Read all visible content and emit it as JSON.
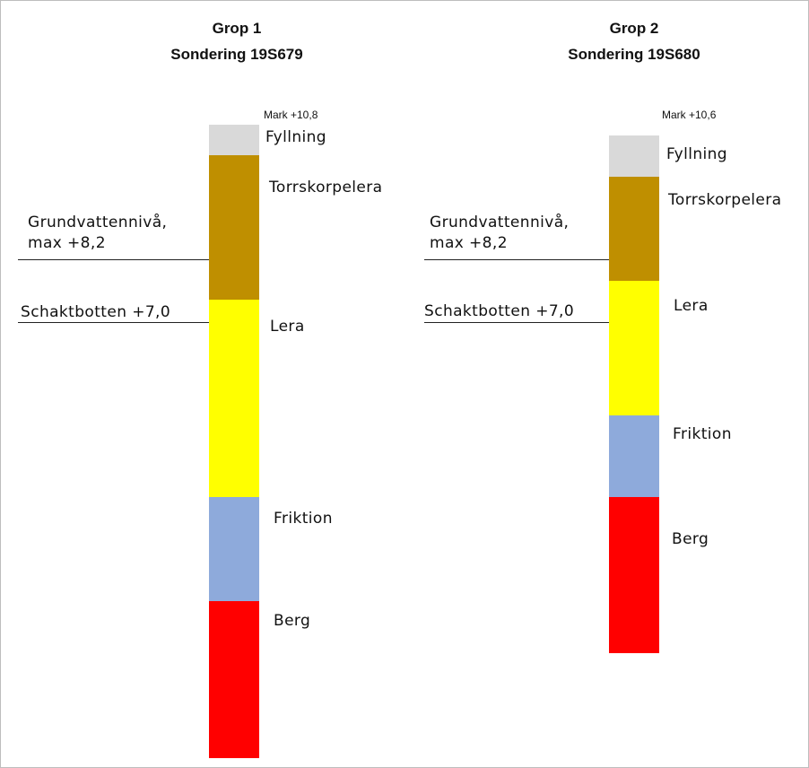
{
  "colors": {
    "fyllning": "#d9d9d9",
    "torrskorpelera": "#bf8f00",
    "lera": "#ffff00",
    "friktion": "#8eaadb",
    "berg": "#ff0000"
  },
  "columns": [
    {
      "title_line1": "Grop 1",
      "title_line2": "Sondering 19S679",
      "mark": "Mark +10,8",
      "layers": [
        "Fyllning",
        "Torrskorpelera",
        "Lera",
        "Friktion",
        "Berg"
      ],
      "groundwater_line1": "Grundvattennivå,",
      "groundwater_line2": "max +8,2",
      "excavation": "Schaktbotten +7,0"
    },
    {
      "title_line1": "Grop 2",
      "title_line2": "Sondering 19S680",
      "mark": "Mark +10,6",
      "layers": [
        "Fyllning",
        "Torrskorpelera",
        "Lera",
        "Friktion",
        "Berg"
      ],
      "groundwater_line1": "Grundvattennivå,",
      "groundwater_line2": "max +8,2",
      "excavation": "Schaktbotten +7,0"
    }
  ]
}
